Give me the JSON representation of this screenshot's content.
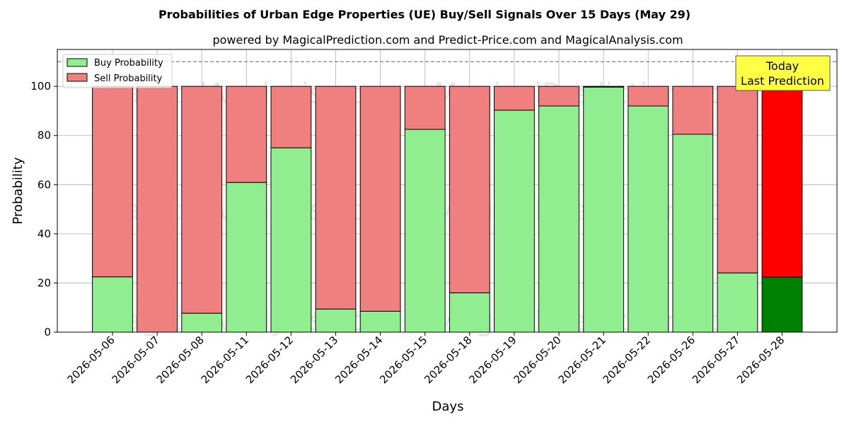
{
  "chart_data": {
    "type": "bar",
    "stacked": true,
    "title": "Probabilities of Urban Edge Properties (UE) Buy/Sell Signals Over 15 Days (May 29)",
    "subtitle": "powered by MagicalPrediction.com and Predict-Price.com and MagicalAnalysis.com",
    "xlabel": "Days",
    "ylabel": "Probability",
    "ylim": [
      0,
      115
    ],
    "yticks": [
      0,
      20,
      40,
      60,
      80,
      100
    ],
    "grid": true,
    "legend_position": "top-left",
    "reference_line": 110,
    "categories": [
      "2026-05-06",
      "2026-05-07",
      "2026-05-08",
      "2026-05-11",
      "2026-05-12",
      "2026-05-13",
      "2026-05-14",
      "2026-05-15",
      "2026-05-18",
      "2026-05-19",
      "2026-05-20",
      "2026-05-21",
      "2026-05-22",
      "2026-05-26",
      "2026-05-27",
      "2026-05-28"
    ],
    "series": [
      {
        "name": "Buy Probability",
        "color": "#90ee90",
        "highlight_color": "#008000",
        "values": [
          22.5,
          0,
          7.7,
          60.9,
          75.0,
          9.4,
          8.5,
          82.5,
          16.0,
          90.3,
          92.0,
          99.7,
          92.0,
          80.5,
          24.1,
          22.4
        ]
      },
      {
        "name": "Sell Probability",
        "color": "#f08080",
        "highlight_color": "#ff0000",
        "values": [
          77.5,
          100,
          92.3,
          39.1,
          25.0,
          90.6,
          91.5,
          17.5,
          84.0,
          9.7,
          8.0,
          0.3,
          8.0,
          19.5,
          75.9,
          77.6
        ]
      }
    ],
    "highlight_index": 15,
    "annotation": {
      "line1": "Today",
      "line2": "Last Prediction",
      "background": "#ffff44"
    },
    "watermarks": [
      "MagicalAnalysis.com",
      "MagicalPrediction.com"
    ]
  }
}
